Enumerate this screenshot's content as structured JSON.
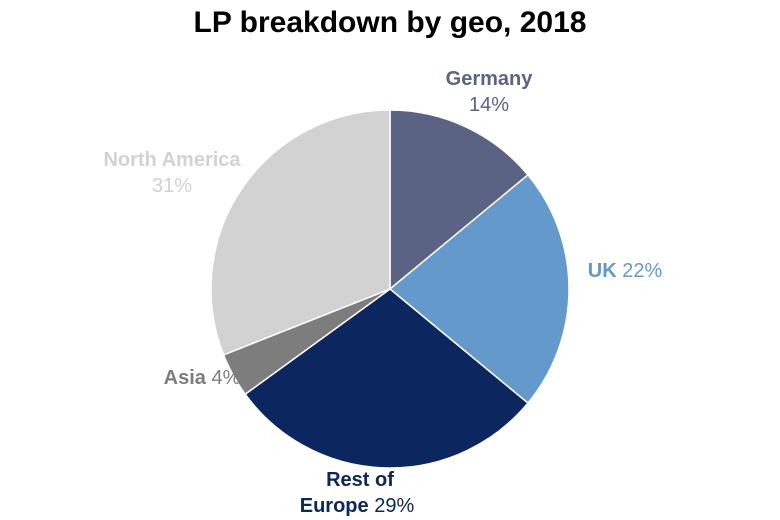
{
  "chart_data": {
    "type": "pie",
    "title": "LP breakdown by geo, 2018",
    "start": "12 o'clock",
    "direction": "clockwise",
    "slices": [
      {
        "name": "Germany",
        "value": 14,
        "value_label": "14%",
        "color": "#5b6384",
        "label_color": "#5b6384"
      },
      {
        "name": "UK",
        "value": 22,
        "value_label": "22%",
        "color": "#6399cb",
        "label_color": "#6399cb"
      },
      {
        "name": "Rest of Europe",
        "name_lines": [
          "Rest of",
          "Europe"
        ],
        "value": 29,
        "value_label": "29%",
        "color": "#0c2660",
        "label_color": "#0c2660"
      },
      {
        "name": "Asia",
        "value": 4,
        "value_label": "4%",
        "color": "#7d7d7d",
        "label_color": "#7d7d7d"
      },
      {
        "name": "North America",
        "value": 31,
        "value_label": "31%",
        "color": "#d2d2d2",
        "label_color": "#d2d2d2"
      }
    ]
  }
}
